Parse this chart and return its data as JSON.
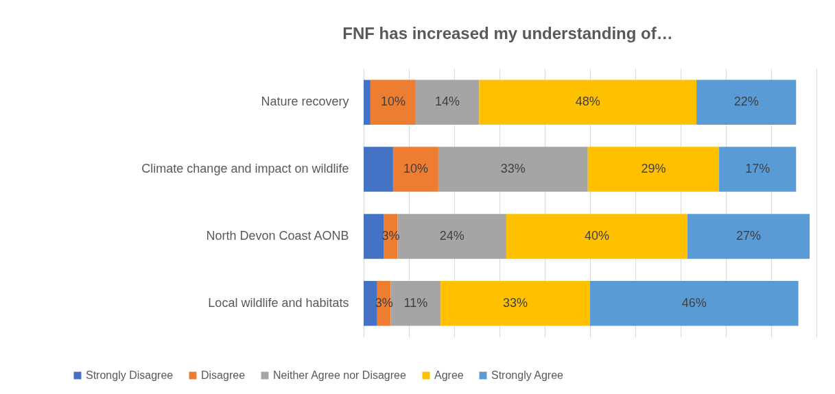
{
  "chart_data": {
    "type": "bar",
    "title": "FNF has increased my understanding of…",
    "orientation": "horizontal",
    "stacked": true,
    "categories": [
      "Nature recovery",
      "Climate change and impact on wildlife",
      "North Devon Coast AONB",
      "Local wildlife and habitats"
    ],
    "series": [
      {
        "name": "Strongly Disagree",
        "color": "#4472c4",
        "values": [
          1.5,
          6.5,
          4.5,
          3
        ],
        "value_labels": [
          null,
          null,
          null,
          null
        ]
      },
      {
        "name": "Disagree",
        "color": "#ed7d31",
        "values": [
          10,
          10,
          3,
          3
        ],
        "value_labels": [
          "10%",
          "10%",
          "3%",
          "3%"
        ]
      },
      {
        "name": "Neither Agree nor Disagree",
        "color": "#a5a5a5",
        "values": [
          14,
          33,
          24,
          11
        ],
        "value_labels": [
          "14%",
          "33%",
          "24%",
          "11%"
        ]
      },
      {
        "name": "Agree",
        "color": "#ffc000",
        "values": [
          48,
          29,
          40,
          33
        ],
        "value_labels": [
          "48%",
          "29%",
          "40%",
          "33%"
        ]
      },
      {
        "name": "Strongly Agree",
        "color": "#5b9bd5",
        "values": [
          22,
          17,
          27,
          46
        ],
        "value_labels": [
          "22%",
          "17%",
          "27%",
          "46%"
        ]
      }
    ],
    "xlim": [
      0,
      100
    ],
    "xticks": [
      {
        "value": 0,
        "label": null
      },
      {
        "value": 10,
        "label": null
      },
      {
        "value": 20,
        "label": null
      },
      {
        "value": 30,
        "label": null
      },
      {
        "value": 40,
        "label": null
      },
      {
        "value": 50,
        "label": null
      },
      {
        "value": 60,
        "label": null
      },
      {
        "value": 70,
        "label": null
      },
      {
        "value": 80,
        "label": null
      },
      {
        "value": 90,
        "label": null
      },
      {
        "value": 100,
        "label": null
      }
    ],
    "tick_labels": "y",
    "grid": "x",
    "legend": "bottom"
  }
}
